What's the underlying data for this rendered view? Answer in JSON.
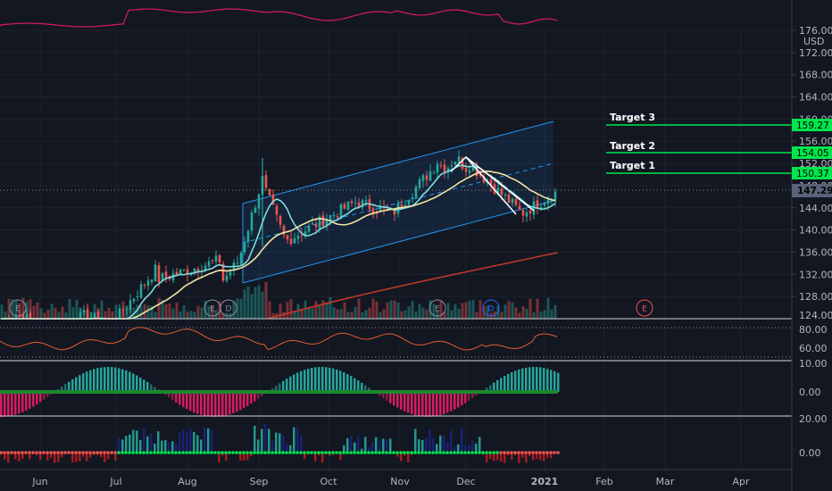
{
  "symbol_currency": "USD",
  "price_axis": {
    "ticks": [
      176,
      172,
      168,
      164,
      160,
      156,
      152,
      148,
      144,
      140,
      136,
      132,
      128
    ],
    "tick_labels": [
      "176.00",
      "172.00",
      "168.00",
      "164.00",
      "160.00",
      "156.00",
      "152.00",
      "148.00",
      "144.00",
      "140.00",
      "136.00",
      "132.00",
      "128.00"
    ],
    "bottom_partial_label": "124.00",
    "min": 124,
    "max": 176
  },
  "time_axis": {
    "labels": [
      "Jun",
      "Jul",
      "Aug",
      "Sep",
      "Oct",
      "Nov",
      "Dec",
      "2021",
      "Feb",
      "Mar",
      "Apr"
    ]
  },
  "current_price": {
    "value": 147.29,
    "label": "147.29",
    "color": "#5a6278"
  },
  "targets": [
    {
      "name": "Target 3",
      "value": 159.27,
      "label": "159.27"
    },
    {
      "name": "Target 2",
      "value": 154.05,
      "label": "154.05"
    },
    {
      "name": "Target 1",
      "value": 150.37,
      "label": "150.37"
    }
  ],
  "target_color": "#00e64d",
  "earnings_markers": [
    {
      "letter": "E",
      "color": "#8a8f9c"
    },
    {
      "letter": "E",
      "color": "#8a8f9c"
    },
    {
      "letter": "D",
      "color": "#8a8f9c"
    },
    {
      "letter": "E",
      "color": "#8a8f9c"
    },
    {
      "letter": "D",
      "color": "#2962ff"
    },
    {
      "letter": "E",
      "color": "#ef5350"
    }
  ],
  "indicator_axes": {
    "rsi": {
      "labels": [
        "80.00",
        "60.00"
      ]
    },
    "macd": {
      "labels": [
        "10.00",
        "0.00"
      ]
    },
    "momentum": {
      "labels": [
        "20.00",
        "0.00"
      ]
    }
  },
  "colors": {
    "background": "#131722",
    "up_candle": "#26a69a",
    "down_candle": "#ef5350",
    "ma_fast": "#7fdbe0",
    "ma_mid": "#f3e6a5",
    "ma_slow": "#c0392b",
    "channel": "#2196f3",
    "top_indicator": "#d81b60",
    "rsi_line": "#e65c2e"
  }
}
